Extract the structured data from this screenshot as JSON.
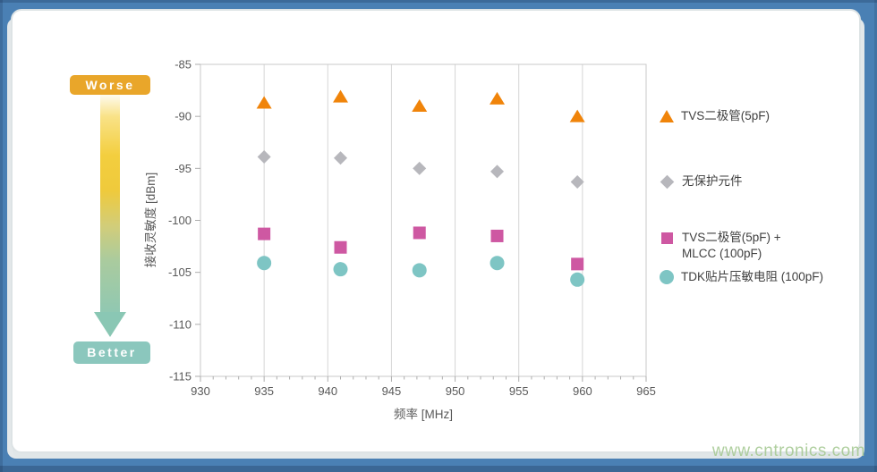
{
  "frame": {
    "bg_color": "#4A80B4",
    "card_color": "#FFFFFF",
    "watermark": "www.cntronics.com"
  },
  "indicator": {
    "worse_label": "Worse",
    "better_label": "Better",
    "worse_color": "#E9A62A",
    "better_color": "#8BC7BD"
  },
  "legend": {
    "items": [
      {
        "label": "TVS二极管(5pF)"
      },
      {
        "label": "无保护元件"
      },
      {
        "label_line1": "TVS二极管(5pF) +",
        "label_line2": "MLCC (100pF)"
      },
      {
        "label": "TDK贴片压敏电阻 (100pF)"
      }
    ]
  },
  "chart_data": {
    "type": "scatter",
    "title": "",
    "xlabel": "频率 [MHz]",
    "ylabel": "接收灵敏度 [dBm]",
    "xlim": [
      930,
      965
    ],
    "ylim": [
      -115,
      -85
    ],
    "x_major_ticks": [
      930,
      935,
      940,
      945,
      950,
      955,
      960,
      965
    ],
    "x_minor_step": 1,
    "y_ticks": [
      -85,
      -90,
      -95,
      -100,
      -105,
      -110,
      -115
    ],
    "grid_x": [
      935,
      940,
      945,
      950,
      955,
      960
    ],
    "grid_on": "vertical-only",
    "legend_position": "right",
    "x": [
      935,
      941,
      947.2,
      953.3,
      959.6
    ],
    "series": [
      {
        "name": "TVS二极管(5pF)",
        "marker": "triangle",
        "color": "#F0840A",
        "values": [
          -88.7,
          -88.1,
          -89.0,
          -88.3,
          -90.0
        ]
      },
      {
        "name": "无保护元件",
        "marker": "diamond",
        "color": "#B7B7BC",
        "values": [
          -93.9,
          -94.0,
          -95.0,
          -95.3,
          -96.3
        ]
      },
      {
        "name": "TVS二极管(5pF) + MLCC (100pF)",
        "marker": "square",
        "color": "#CE58A2",
        "values": [
          -101.3,
          -102.6,
          -101.2,
          -101.5,
          -104.2
        ]
      },
      {
        "name": "TDK贴片压敏电阻 (100pF)",
        "marker": "circle",
        "color": "#7EC5C4",
        "values": [
          -104.1,
          -104.7,
          -104.8,
          -104.1,
          -105.7
        ]
      }
    ],
    "axis_text_color": "#595959",
    "grid_color": "#D6D6D6",
    "border_color": "#C8C8C8",
    "tick_color": "#ADADAD"
  }
}
